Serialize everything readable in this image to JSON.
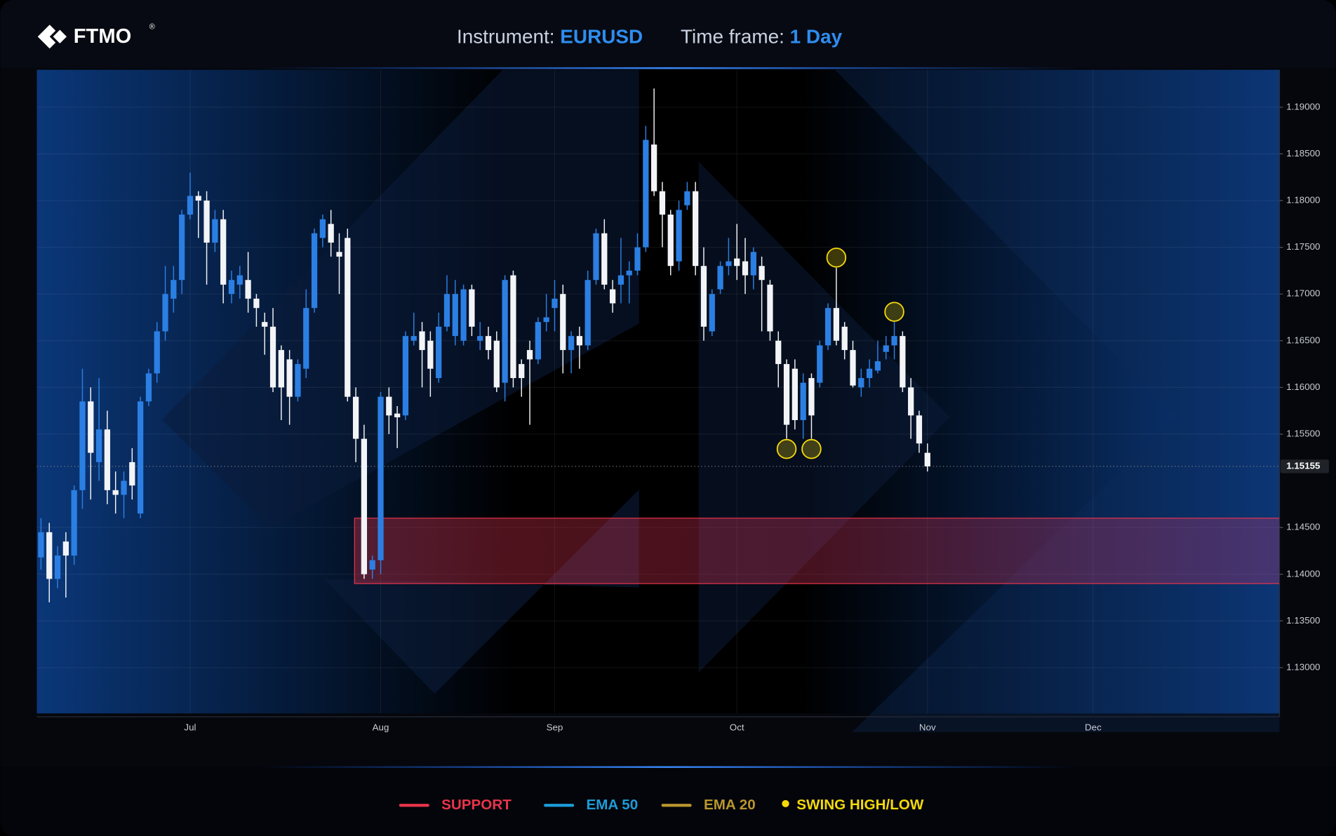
{
  "header": {
    "logo": "FTMO",
    "logo_mark": "®",
    "instrument_label": "Instrument:",
    "instrument": "EURUSD",
    "timeframe_label": "Time frame:",
    "timeframe": "1 Day"
  },
  "chart_data": {
    "type": "candlestick",
    "up_color": "#2b7fe3",
    "down_color": "#f2f4f7",
    "grid": true,
    "ylim": [
      1.1251,
      1.194
    ],
    "yticks": [
      {
        "value": 1.13,
        "label": "1.13000"
      },
      {
        "value": 1.135,
        "label": "1.13500"
      },
      {
        "value": 1.14,
        "label": "1.14000"
      },
      {
        "value": 1.145,
        "label": "1.14500"
      },
      {
        "value": 1.155,
        "label": "1.15500"
      },
      {
        "value": 1.16,
        "label": "1.16000"
      },
      {
        "value": 1.165,
        "label": "1.16500"
      },
      {
        "value": 1.17,
        "label": "1.17000"
      },
      {
        "value": 1.175,
        "label": "1.17500"
      },
      {
        "value": 1.18,
        "label": "1.18000"
      },
      {
        "value": 1.185,
        "label": "1.18500"
      },
      {
        "value": 1.19,
        "label": "1.19000"
      }
    ],
    "last_price": 1.15155,
    "categories": [
      null,
      null,
      null,
      null,
      null,
      null,
      null,
      null,
      null,
      null,
      null,
      null,
      null,
      null,
      null,
      null,
      null,
      null,
      "Jul",
      null,
      null,
      null,
      null,
      null,
      null,
      null,
      null,
      null,
      null,
      null,
      null,
      null,
      null,
      null,
      null,
      null,
      null,
      null,
      null,
      null,
      null,
      "Aug",
      null,
      null,
      null,
      null,
      null,
      null,
      null,
      null,
      null,
      null,
      null,
      null,
      null,
      null,
      null,
      null,
      null,
      null,
      null,
      null,
      "Sep",
      null,
      null,
      null,
      null,
      null,
      null,
      null,
      null,
      null,
      null,
      null,
      null,
      null,
      null,
      null,
      null,
      null,
      null,
      null,
      null,
      null,
      "Oct",
      null,
      null,
      null,
      null,
      null,
      null,
      null,
      null,
      null,
      null,
      null,
      null,
      null,
      null,
      null,
      null,
      null,
      null,
      null,
      null,
      null,
      null,
      "Nov",
      null,
      null,
      null,
      null,
      null,
      null,
      null,
      null,
      null,
      null,
      null,
      null,
      null,
      null,
      null,
      null,
      null,
      null,
      null,
      "Dec",
      null,
      null,
      null,
      null,
      null,
      null,
      null,
      null,
      null,
      null,
      null,
      null,
      null,
      null,
      null,
      null,
      null,
      null,
      null,
      null,
      null,
      null
    ],
    "open": [
      1.1418,
      1.1445,
      1.1395,
      1.1435,
      1.142,
      1.149,
      1.1585,
      1.152,
      1.1555,
      1.149,
      1.1485,
      1.152,
      1.1465,
      1.1585,
      1.1615,
      1.166,
      1.1695,
      1.1715,
      1.1785,
      1.1805,
      1.18,
      1.1755,
      1.178,
      1.17,
      1.171,
      1.1715,
      1.1695,
      1.167,
      1.1665,
      1.164,
      1.163,
      1.159,
      1.162,
      1.1685,
      1.176,
      1.1775,
      1.1745,
      1.176,
      1.159,
      1.1545,
      1.1405,
      1.1415,
      1.159,
      1.1572,
      1.157,
      1.165,
      1.166,
      1.165,
      1.161,
      1.1665,
      1.1655,
      1.165,
      1.1705,
      1.165,
      1.1655,
      1.165,
      1.1605,
      1.172,
      1.1625,
      1.164,
      1.163,
      1.167,
      1.1685,
      1.17,
      1.164,
      1.1655,
      1.1645,
      1.1715,
      1.1765,
      1.1705,
      1.171,
      1.172,
      1.1725,
      1.175,
      1.186,
      1.181,
      1.1785,
      1.1735,
      1.1795,
      1.181,
      1.173,
      1.166,
      1.1705,
      1.173,
      1.1738,
      1.1735,
      1.172,
      1.173,
      1.171,
      1.165,
      1.1625,
      1.162,
      1.1565,
      1.161,
      1.1605,
      1.1645,
      1.1685,
      1.1665,
      1.164,
      1.16,
      1.161,
      1.1618,
      1.1638,
      1.1645,
      1.1655,
      1.16,
      1.157,
      1.153,
      null,
      null,
      null,
      null,
      null,
      null,
      null,
      null,
      null,
      null,
      null,
      null,
      null,
      null,
      null,
      null,
      null,
      null,
      null,
      null,
      null,
      null,
      null,
      null,
      null,
      null,
      null,
      null,
      null,
      null,
      null,
      null,
      null,
      null,
      null,
      null,
      null,
      null,
      null,
      null,
      null,
      null
    ],
    "high": [
      1.146,
      1.1455,
      1.143,
      1.1445,
      1.1495,
      1.162,
      1.16,
      1.161,
      1.1575,
      1.151,
      1.151,
      1.1535,
      1.159,
      1.162,
      1.167,
      1.173,
      1.173,
      1.179,
      1.183,
      1.181,
      1.181,
      1.179,
      1.179,
      1.1725,
      1.173,
      1.1745,
      1.17,
      1.168,
      1.1685,
      1.1645,
      1.164,
      1.163,
      1.1705,
      1.177,
      1.1785,
      1.179,
      1.1765,
      1.177,
      1.16,
      1.156,
      1.142,
      1.1595,
      1.16,
      1.158,
      1.166,
      1.168,
      1.167,
      1.166,
      1.168,
      1.172,
      1.1715,
      1.171,
      1.171,
      1.167,
      1.1665,
      1.166,
      1.172,
      1.1725,
      1.163,
      1.165,
      1.1675,
      1.17,
      1.1715,
      1.171,
      1.166,
      1.1665,
      1.1725,
      1.177,
      1.178,
      1.1715,
      1.176,
      1.1735,
      1.1765,
      1.188,
      1.192,
      1.182,
      1.179,
      1.18,
      1.182,
      1.182,
      1.175,
      1.1705,
      1.1735,
      1.176,
      1.1775,
      1.176,
      1.175,
      1.174,
      1.1715,
      1.166,
      1.163,
      1.163,
      1.1615,
      1.1615,
      1.165,
      1.169,
      1.1728,
      1.167,
      1.165,
      1.162,
      1.163,
      1.165,
      1.1655,
      1.167,
      1.166,
      1.161,
      1.1575,
      1.154,
      null,
      null,
      null,
      null,
      null,
      null,
      null,
      null,
      null,
      null,
      null,
      null,
      null,
      null,
      null,
      null,
      null,
      null,
      null,
      null,
      null,
      null,
      null,
      null,
      null,
      null,
      null,
      null,
      null,
      null,
      null,
      null,
      null,
      null,
      null,
      null,
      null,
      null,
      null,
      null,
      null,
      null
    ],
    "low": [
      1.1405,
      1.137,
      1.1385,
      1.1375,
      1.141,
      1.147,
      1.148,
      1.15,
      1.1475,
      1.1465,
      1.146,
      1.148,
      1.146,
      1.158,
      1.1605,
      1.165,
      1.168,
      1.17,
      1.178,
      1.176,
      1.171,
      1.1745,
      1.169,
      1.169,
      1.1695,
      1.168,
      1.1665,
      1.1635,
      1.1595,
      1.1565,
      1.156,
      1.1585,
      1.161,
      1.168,
      1.175,
      1.174,
      1.17,
      1.1585,
      1.152,
      1.1395,
      1.1395,
      1.14,
      1.155,
      1.1535,
      1.1565,
      1.1645,
      1.16,
      1.159,
      1.1605,
      1.166,
      1.1645,
      1.1645,
      1.1655,
      1.164,
      1.163,
      1.1595,
      1.1585,
      1.16,
      1.159,
      1.156,
      1.1625,
      1.166,
      1.166,
      1.1615,
      1.1615,
      1.162,
      1.164,
      1.171,
      1.1705,
      1.168,
      1.169,
      1.169,
      1.172,
      1.1745,
      1.1805,
      1.175,
      1.172,
      1.1725,
      1.179,
      1.172,
      1.165,
      1.1655,
      1.17,
      1.172,
      1.1715,
      1.17,
      1.1705,
      1.166,
      1.165,
      1.16,
      1.1545,
      1.1555,
      1.1545,
      1.1545,
      1.16,
      1.164,
      1.1645,
      1.163,
      1.16,
      1.159,
      1.16,
      1.1615,
      1.163,
      1.163,
      1.1595,
      1.1545,
      1.153,
      1.151,
      null,
      null,
      null,
      null,
      null,
      null,
      null,
      null,
      null,
      null,
      null,
      null,
      null,
      null,
      null,
      null,
      null,
      null,
      null,
      null,
      null,
      null,
      null,
      null,
      null,
      null,
      null,
      null,
      null,
      null,
      null,
      null,
      null,
      null,
      null,
      null,
      null,
      null,
      null,
      null,
      null,
      null
    ],
    "close": [
      1.1445,
      1.1395,
      1.142,
      1.142,
      1.149,
      1.1585,
      1.153,
      1.1555,
      1.149,
      1.1485,
      1.15,
      1.1495,
      1.1585,
      1.1615,
      1.166,
      1.17,
      1.1715,
      1.1785,
      1.1805,
      1.18,
      1.1755,
      1.178,
      1.171,
      1.1715,
      1.172,
      1.1695,
      1.1685,
      1.1665,
      1.16,
      1.16,
      1.159,
      1.1625,
      1.1685,
      1.1765,
      1.178,
      1.1755,
      1.174,
      1.159,
      1.1545,
      1.14,
      1.1415,
      1.159,
      1.157,
      1.1568,
      1.1655,
      1.1655,
      1.164,
      1.162,
      1.1665,
      1.17,
      1.17,
      1.1705,
      1.1665,
      1.1655,
      1.164,
      1.16,
      1.1715,
      1.161,
      1.161,
      1.163,
      1.167,
      1.1675,
      1.1695,
      1.164,
      1.1655,
      1.1645,
      1.1715,
      1.1765,
      1.171,
      1.169,
      1.172,
      1.1725,
      1.175,
      1.1865,
      1.181,
      1.1785,
      1.173,
      1.179,
      1.181,
      1.173,
      1.1665,
      1.17,
      1.173,
      1.1735,
      1.173,
      1.172,
      1.1745,
      1.1715,
      1.166,
      1.1625,
      1.156,
      1.1565,
      1.1605,
      1.157,
      1.1645,
      1.1685,
      1.165,
      1.164,
      1.1602,
      1.161,
      1.162,
      1.1628,
      1.1645,
      1.1655,
      1.16,
      1.157,
      1.154,
      1.15155,
      null,
      null,
      null,
      null,
      null,
      null,
      null,
      null,
      null,
      null,
      null,
      null,
      null,
      null,
      null,
      null,
      null,
      null,
      null,
      null,
      null,
      null,
      null,
      null,
      null,
      null,
      null,
      null,
      null,
      null,
      null,
      null,
      null,
      null,
      null,
      null,
      null,
      null,
      null,
      null,
      null,
      null
    ],
    "support": {
      "low": 1.139,
      "high": 1.146,
      "color": "#e8344b"
    },
    "swings": {
      "low": [
        90,
        93
      ],
      "high": [
        96,
        103
      ],
      "color": "#f5d90a"
    },
    "legend": [
      {
        "name": "SUPPORT",
        "color": "#e8344b",
        "marker": "line"
      },
      {
        "name": "EMA 50",
        "color": "#1d9bd8",
        "marker": "line"
      },
      {
        "name": "EMA 20",
        "color": "#b8962e",
        "marker": "line"
      },
      {
        "name": "SWING HIGH/LOW",
        "color": "#f5d90a",
        "marker": "dot"
      }
    ]
  }
}
